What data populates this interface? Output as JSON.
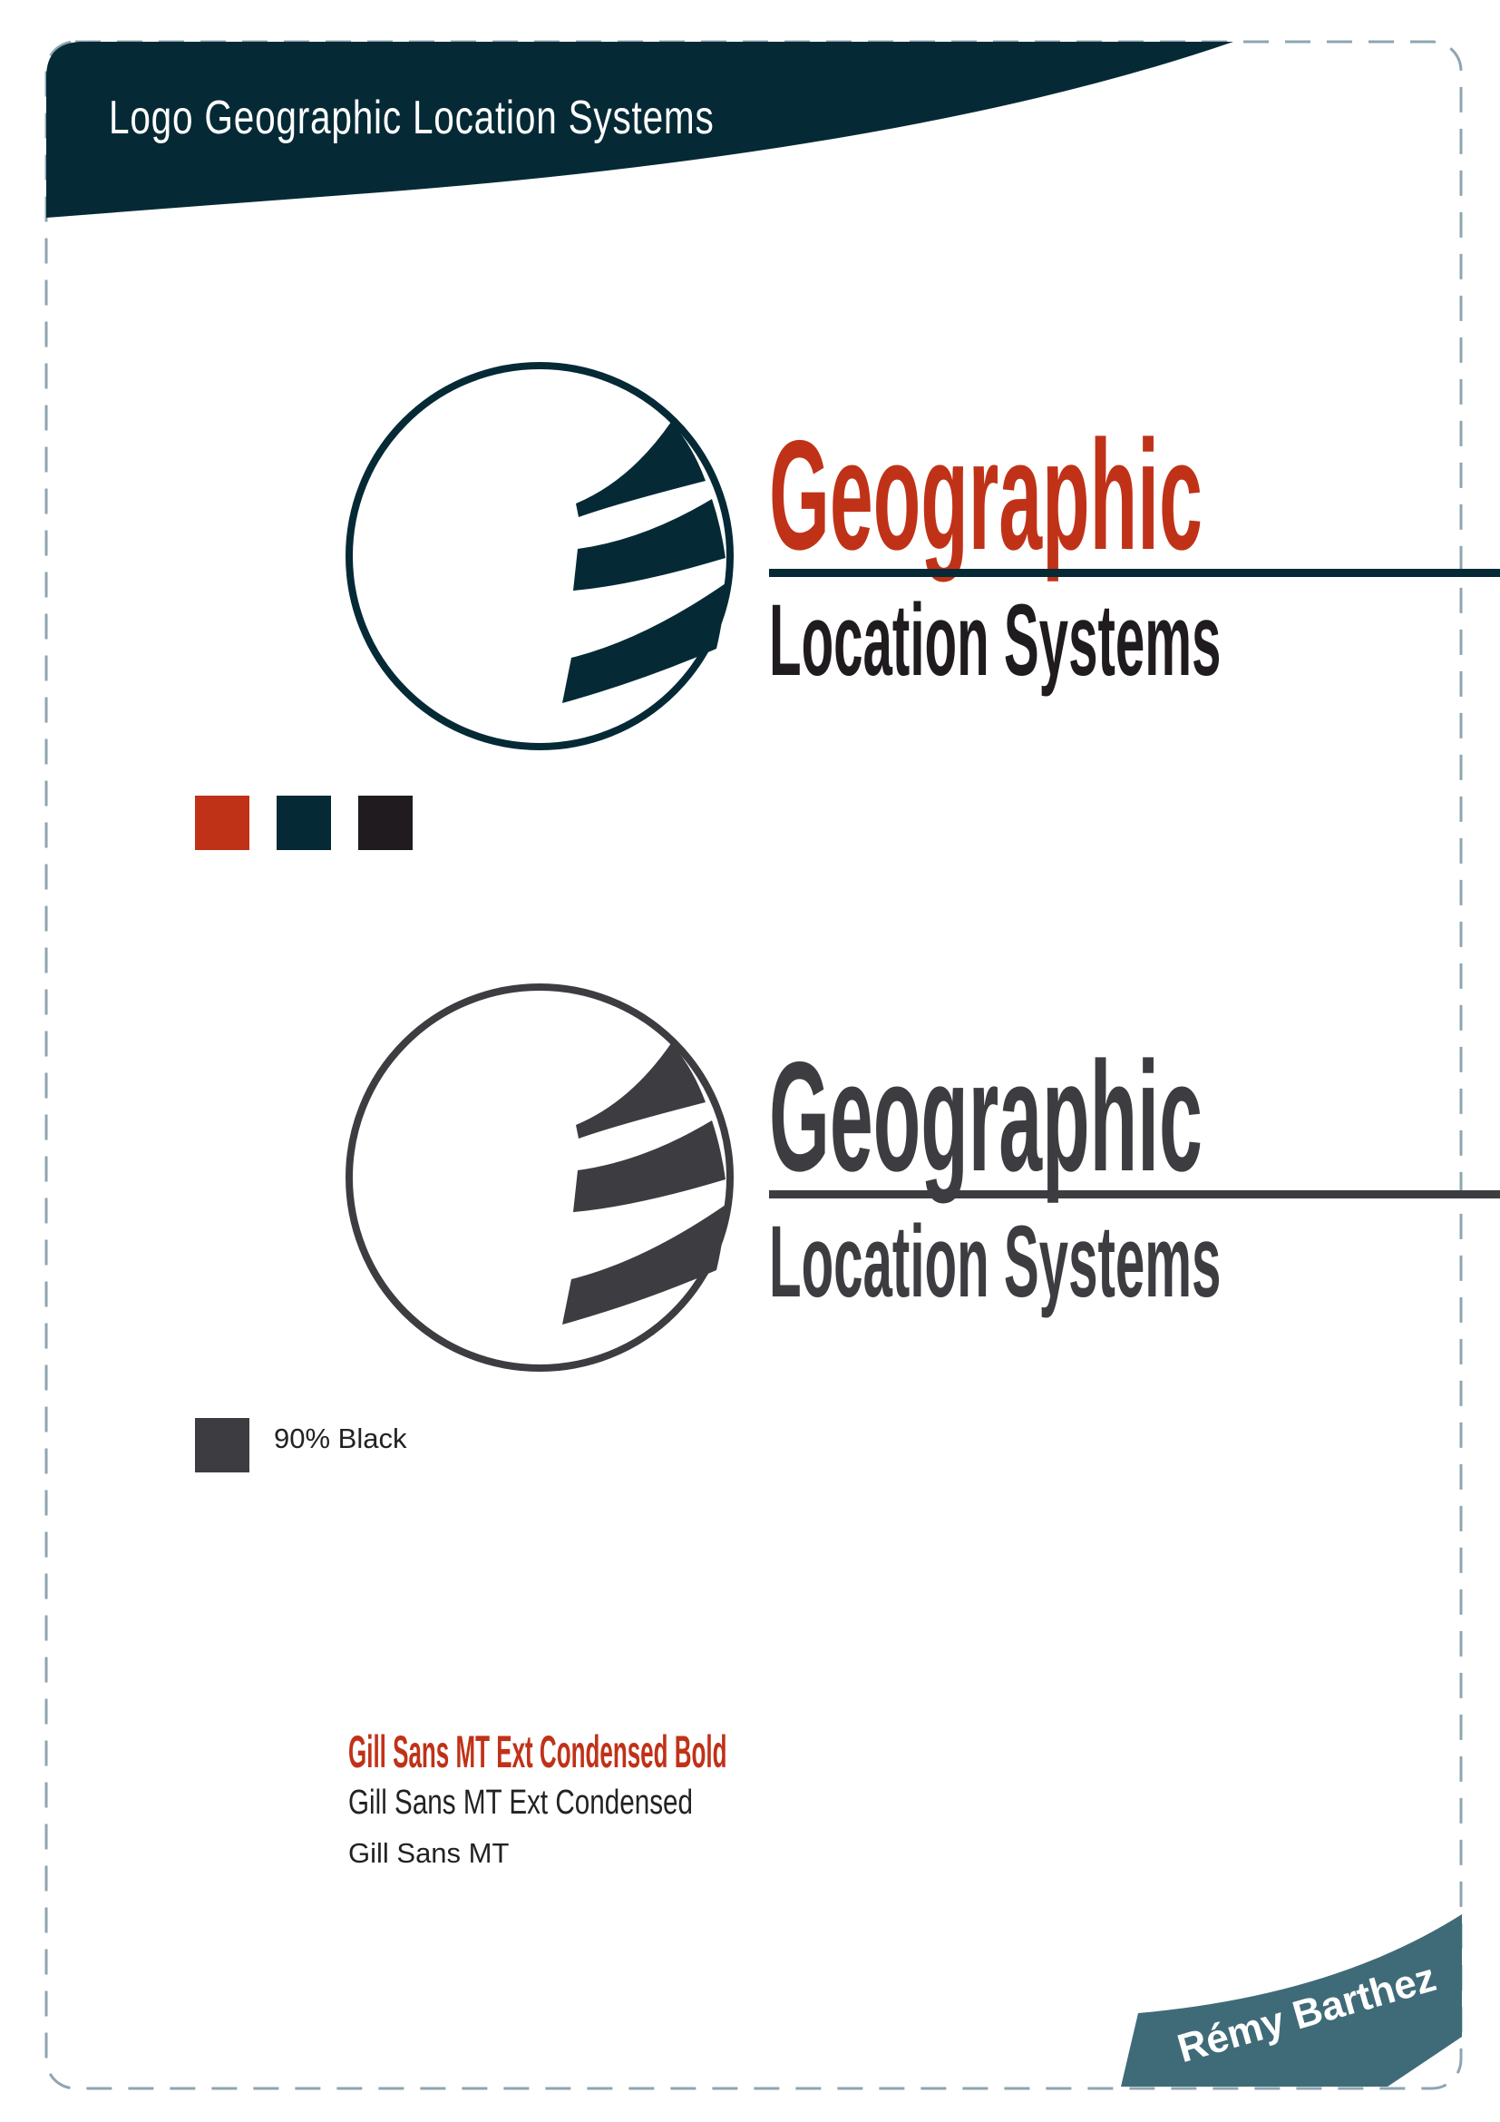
{
  "header": {
    "title": "Logo Geographic Location Systems"
  },
  "colors": {
    "frame_dash": "#8ea5b0",
    "header_bg": "#052a36",
    "footer_ribbon": "#3f6b78",
    "brand_red": "#c03218",
    "brand_navy": "#052a36",
    "brand_black": "#1f1b1e",
    "gray_90": "#3d3c40"
  },
  "logo_color": {
    "word1": "Geographic",
    "word2": "Location Systems",
    "word1_color": "#c03218",
    "word2_color": "#1f1b1e",
    "mark_color": "#052a36"
  },
  "logo_gray": {
    "word1": "Geographic",
    "word2": "Location Systems",
    "color": "#3d3c40"
  },
  "palette": {
    "swatches": [
      "#c03218",
      "#052a36",
      "#1f1b1e"
    ]
  },
  "gray_swatch": {
    "color": "#3d3c40",
    "label": "90% Black"
  },
  "fonts": {
    "items": [
      "Gill Sans MT Ext Condensed Bold",
      "Gill Sans MT Ext Condensed",
      "Gill Sans MT"
    ]
  },
  "footer": {
    "author": "Rémy Barthez"
  }
}
